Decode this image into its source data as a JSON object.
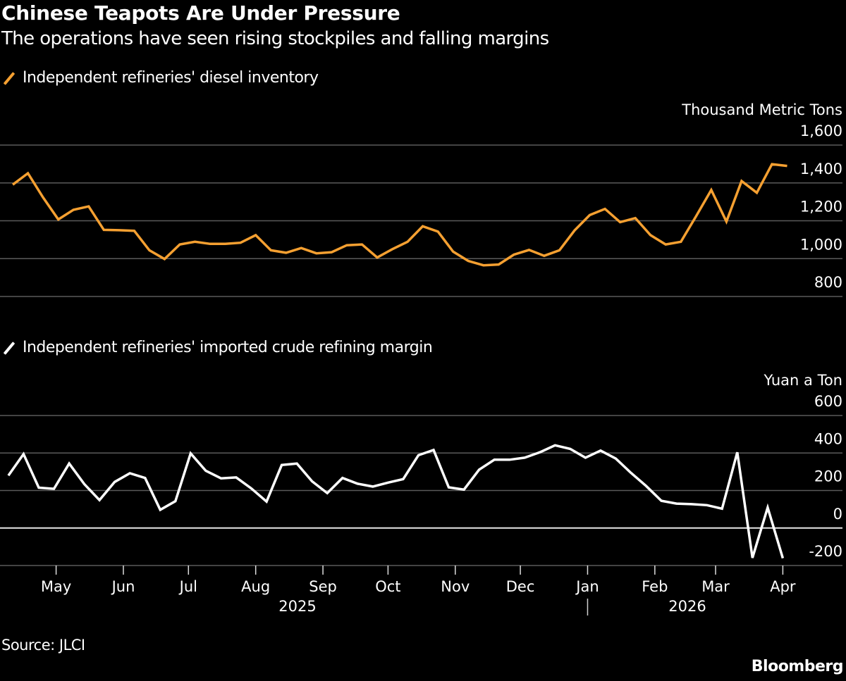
{
  "title": "Chinese Teapots Are Under Pressure",
  "subtitle": "The operations have seen rising stockpiles and falling margins",
  "source": "Source: JLCI",
  "logo": "Bloomberg",
  "colors": {
    "diesel": "#f5a031",
    "margin": "#ffffff",
    "grid": "#5a5a5a",
    "zero_line": "#e6e6e6"
  },
  "legend_icon": "slash-line-icon",
  "chart_data": [
    {
      "type": "line",
      "legend": "Independent refineries' diesel inventory",
      "unit_label": "Thousand Metric Tons",
      "ylim": [
        800,
        1600
      ],
      "y_ticks": [
        1600,
        1400,
        1200,
        1000,
        800
      ],
      "y_tick_labels": [
        "1,600",
        "1,400",
        "1,200",
        "1,000",
        "800"
      ],
      "grid": true,
      "series": [
        {
          "name": "Independent refineries' diesel inventory",
          "color": "#f5a031",
          "x": [
            "2025-04-11",
            "2025-04-18",
            "2025-04-25",
            "2025-05-02",
            "2025-05-09",
            "2025-05-16",
            "2025-05-23",
            "2025-05-30",
            "2025-06-06",
            "2025-06-13",
            "2025-06-20",
            "2025-06-27",
            "2025-07-04",
            "2025-07-11",
            "2025-07-18",
            "2025-07-25",
            "2025-08-01",
            "2025-08-08",
            "2025-08-15",
            "2025-08-22",
            "2025-08-29",
            "2025-09-05",
            "2025-09-12",
            "2025-09-19",
            "2025-09-26",
            "2025-10-03",
            "2025-10-10",
            "2025-10-17",
            "2025-10-24",
            "2025-10-31",
            "2025-11-07",
            "2025-11-14",
            "2025-11-21",
            "2025-11-28",
            "2025-12-05",
            "2025-12-12",
            "2025-12-19",
            "2025-12-26",
            "2026-01-02",
            "2026-01-09",
            "2026-01-16",
            "2026-01-23",
            "2026-01-30",
            "2026-02-06",
            "2026-02-13",
            "2026-02-20",
            "2026-02-27",
            "2026-03-06",
            "2026-03-13",
            "2026-03-20",
            "2026-03-27",
            "2026-04-03"
          ],
          "y": [
            1391,
            1451,
            1323,
            1207,
            1258,
            1276,
            1152,
            1150,
            1147,
            1044,
            998,
            1075,
            1089,
            1078,
            1078,
            1084,
            1124,
            1044,
            1031,
            1056,
            1028,
            1034,
            1071,
            1075,
            1006,
            1050,
            1089,
            1171,
            1143,
            1037,
            988,
            965,
            969,
            1021,
            1046,
            1015,
            1044,
            1149,
            1230,
            1263,
            1193,
            1214,
            1124,
            1075,
            1089,
            1224,
            1363,
            1196,
            1410,
            1348,
            1499,
            1490
          ]
        }
      ]
    },
    {
      "type": "line",
      "legend": "Independent refineries' imported crude refining margin",
      "unit_label": "Yuan a Ton",
      "ylim": [
        -200,
        600
      ],
      "y_ticks": [
        600,
        400,
        200,
        0,
        -200
      ],
      "y_tick_labels": [
        "600",
        "400",
        "200",
        "0",
        "-200"
      ],
      "grid": true,
      "series": [
        {
          "name": "Independent refineries' imported crude refining margin",
          "color": "#ffffff",
          "x": [
            "2025-04-09",
            "2025-04-16",
            "2025-04-23",
            "2025-04-30",
            "2025-05-07",
            "2025-05-14",
            "2025-05-21",
            "2025-05-28",
            "2025-06-04",
            "2025-06-11",
            "2025-06-18",
            "2025-06-25",
            "2025-07-02",
            "2025-07-09",
            "2025-07-16",
            "2025-07-23",
            "2025-07-30",
            "2025-08-06",
            "2025-08-13",
            "2025-08-20",
            "2025-08-27",
            "2025-09-03",
            "2025-09-10",
            "2025-09-17",
            "2025-09-24",
            "2025-10-01",
            "2025-10-08",
            "2025-10-15",
            "2025-10-22",
            "2025-10-29",
            "2025-11-05",
            "2025-11-12",
            "2025-11-19",
            "2025-11-26",
            "2025-12-03",
            "2025-12-10",
            "2025-12-17",
            "2025-12-24",
            "2025-12-31",
            "2026-01-07",
            "2026-01-14",
            "2026-01-21",
            "2026-01-28",
            "2026-02-04",
            "2026-02-11",
            "2026-02-18",
            "2026-02-25",
            "2026-03-04",
            "2026-03-11",
            "2026-03-18",
            "2026-03-25",
            "2026-04-01"
          ],
          "y": [
            280,
            394,
            215,
            209,
            344,
            234,
            149,
            246,
            292,
            267,
            97,
            143,
            398,
            305,
            265,
            270,
            211,
            141,
            336,
            344,
            249,
            186,
            267,
            236,
            221,
            242,
            261,
            388,
            416,
            217,
            205,
            311,
            364,
            364,
            375,
            404,
            441,
            422,
            375,
            413,
            370,
            294,
            224,
            145,
            130,
            127,
            122,
            103,
            404,
            -159,
            109,
            -161
          ]
        }
      ]
    }
  ],
  "x_axis": {
    "type": "date",
    "months": [
      {
        "label": "May",
        "date": "2025-05-01"
      },
      {
        "label": "Jun",
        "date": "2025-06-01"
      },
      {
        "label": "Jul",
        "date": "2025-07-01"
      },
      {
        "label": "Aug",
        "date": "2025-08-01"
      },
      {
        "label": "Sep",
        "date": "2025-09-01"
      },
      {
        "label": "Oct",
        "date": "2025-10-01"
      },
      {
        "label": "Nov",
        "date": "2025-11-01"
      },
      {
        "label": "Dec",
        "date": "2025-12-01"
      },
      {
        "label": "Jan",
        "date": "2026-01-01"
      },
      {
        "label": "Feb",
        "date": "2026-02-01"
      },
      {
        "label": "Mar",
        "date": "2026-03-01"
      },
      {
        "label": "Apr",
        "date": "2026-04-01"
      }
    ],
    "years": [
      {
        "label": "2025"
      },
      {
        "label": "2026"
      }
    ],
    "year_divider": "|"
  }
}
